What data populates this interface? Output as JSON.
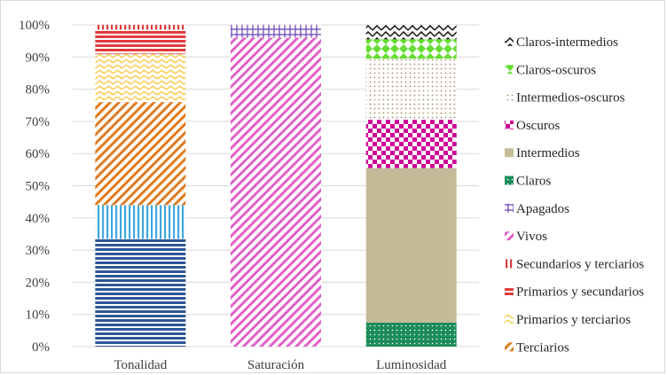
{
  "chart_data": {
    "type": "stacked-bar-100",
    "categories": [
      "Tonalidad",
      "Saturación",
      "Luminosidad"
    ],
    "y_ticks": [
      "0%",
      "10%",
      "20%",
      "30%",
      "40%",
      "50%",
      "60%",
      "70%",
      "80%",
      "90%",
      "100%"
    ],
    "ylim": [
      0,
      100
    ],
    "grid": true,
    "legend_position": "right",
    "series": [
      {
        "name": "Claros",
        "values": [
          0,
          0,
          7.5
        ],
        "color": "#1e8c5a",
        "pattern": "dots"
      },
      {
        "name": "Intermedios",
        "values": [
          0,
          0,
          48
        ],
        "color": "#c4bb98",
        "pattern": "solid"
      },
      {
        "name": "Oscuros",
        "values": [
          0,
          0,
          15
        ],
        "color": "#cc0099",
        "pattern": "checker"
      },
      {
        "name": "Intermedios-oscuros",
        "values": [
          0,
          0,
          19
        ],
        "color": "#a89060",
        "pattern": "dots"
      },
      {
        "name": "Claros-oscuros",
        "values": [
          0,
          0,
          6
        ],
        "color": "#66dd33",
        "pattern": "diamond"
      },
      {
        "name": "Claros-intermedios",
        "values": [
          0,
          0,
          4.5
        ],
        "color": "#111111",
        "pattern": "zigzag"
      },
      {
        "name": "Vivos",
        "values": [
          0,
          96,
          0
        ],
        "color": "#e060c8",
        "pattern": "diagonal"
      },
      {
        "name": "Apagados",
        "values": [
          0,
          4,
          0
        ],
        "color": "#6a3fb5",
        "pattern": "grid"
      },
      {
        "name": "Terciarios",
        "values": [
          0,
          0,
          0
        ],
        "color": "#e07b20",
        "pattern": "none"
      },
      {
        "name": "Primarios y terciarios",
        "values": [
          0,
          0,
          0
        ],
        "color": "#f7c948",
        "pattern": "none"
      }
    ],
    "tonalidad_segments": [
      {
        "value": 33.5,
        "color": "#2f5597",
        "pattern": "hstripes"
      },
      {
        "value": 10.5,
        "color": "#40a8e0",
        "pattern": "vstripes"
      },
      {
        "value": 32,
        "color": "#e07b20",
        "pattern": "diagonal"
      },
      {
        "value": 15,
        "color": "#f7c948",
        "pattern": "wave"
      },
      {
        "value": 7.5,
        "color": "#e03c3c",
        "pattern": "hstripes"
      },
      {
        "value": 1.5,
        "color": "#e03c3c",
        "pattern": "vstripes"
      }
    ],
    "legend": [
      {
        "name": "Claros-intermedios",
        "color": "#111111",
        "pattern": "zigzag"
      },
      {
        "name": "Claros-oscuros",
        "color": "#66dd33",
        "pattern": "diamond"
      },
      {
        "name": "Intermedios-oscuros",
        "color": "#a89060",
        "pattern": "dots"
      },
      {
        "name": "Oscuros",
        "color": "#cc0099",
        "pattern": "checker"
      },
      {
        "name": "Intermedios",
        "color": "#c4bb98",
        "pattern": "solid"
      },
      {
        "name": "Claros",
        "color": "#1e8c5a",
        "pattern": "dots"
      },
      {
        "name": "Apagados",
        "color": "#6a3fb5",
        "pattern": "grid"
      },
      {
        "name": "Vivos",
        "color": "#e060c8",
        "pattern": "diagonal"
      },
      {
        "name": "Secundarios y terciarios",
        "color": "#e03c3c",
        "pattern": "vstripes"
      },
      {
        "name": "Primarios y secundarios",
        "color": "#e03c3c",
        "pattern": "hstripes"
      },
      {
        "name": "Primarios y terciarios",
        "color": "#f7c948",
        "pattern": "wave"
      },
      {
        "name": "Terciarios",
        "color": "#e07b20",
        "pattern": "diagonal"
      }
    ]
  }
}
